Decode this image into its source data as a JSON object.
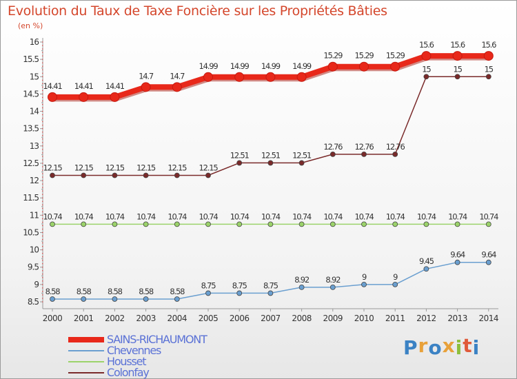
{
  "title": "Evolution du Taux de Taxe Foncière sur les Propriétés Bâties",
  "subtitle": "(en %)",
  "logo": {
    "text": "Proxiti",
    "colors": [
      "#3b82c4",
      "#e8a13a",
      "#3b82c4",
      "#e8a13a",
      "#8dbf3c",
      "#e05a3a",
      "#3b82c4"
    ]
  },
  "chart_data": {
    "type": "line",
    "title": "Evolution du Taux de Taxe Foncière sur les Propriétés Bâties",
    "ylabel": "(en %)",
    "ylim": [
      8.5,
      16
    ],
    "ytick_labels": [
      "8.5",
      "9",
      "9.5",
      "10",
      "10.5",
      "11",
      "11.5",
      "12",
      "12.5",
      "13",
      "13.5",
      "14",
      "14.5",
      "15",
      "15.5",
      "16"
    ],
    "categories": [
      "2000",
      "2001",
      "2002",
      "2003",
      "2004",
      "2005",
      "2006",
      "2007",
      "2008",
      "2009",
      "2010",
      "2011",
      "2012",
      "2013",
      "2014"
    ],
    "grid": false,
    "legend_position": "bottom-left",
    "series": [
      {
        "name": "SAINS-RICHAUMONT",
        "color": "#e8281a",
        "values": [
          14.41,
          14.41,
          14.41,
          14.7,
          14.7,
          14.99,
          14.99,
          14.99,
          14.99,
          15.29,
          15.29,
          15.29,
          15.6,
          15.6,
          15.6
        ],
        "labels": [
          "14.41",
          "14.41",
          "14.41",
          "14.7",
          "14.7",
          "14.99",
          "14.99",
          "14.99",
          "14.99",
          "15.29",
          "15.29",
          "15.29",
          "15.6",
          "15.6",
          "15.6"
        ]
      },
      {
        "name": "Chevennes",
        "color": "#6a9fd0",
        "values": [
          8.58,
          8.58,
          8.58,
          8.58,
          8.58,
          8.75,
          8.75,
          8.75,
          8.92,
          8.92,
          9,
          9,
          9.45,
          9.64,
          9.64
        ],
        "labels": [
          "8.58",
          "8.58",
          "8.58",
          "8.58",
          "8.58",
          "8.75",
          "8.75",
          "8.75",
          "8.92",
          "8.92",
          "9",
          "9",
          "9.45",
          "9.64",
          "9.64"
        ]
      },
      {
        "name": "Housset",
        "color": "#9bd36a",
        "values": [
          10.74,
          10.74,
          10.74,
          10.74,
          10.74,
          10.74,
          10.74,
          10.74,
          10.74,
          10.74,
          10.74,
          10.74,
          10.74,
          10.74,
          10.74
        ],
        "labels": [
          "10.74",
          "10.74",
          "10.74",
          "10.74",
          "10.74",
          "10.74",
          "10.74",
          "10.74",
          "10.74",
          "10.74",
          "10.74",
          "10.74",
          "10.74",
          "10.74",
          "10.74"
        ]
      },
      {
        "name": "Colonfay",
        "color": "#7a2a2a",
        "values": [
          12.15,
          12.15,
          12.15,
          12.15,
          12.15,
          12.15,
          12.51,
          12.51,
          12.51,
          12.76,
          12.76,
          12.76,
          15,
          15,
          15
        ],
        "labels": [
          "12.15",
          "12.15",
          "12.15",
          "12.15",
          "12.15",
          "12.15",
          "12.51",
          "12.51",
          "12.51",
          "12.76",
          "12.76",
          "12.76",
          "15",
          "15",
          "15"
        ]
      }
    ]
  }
}
